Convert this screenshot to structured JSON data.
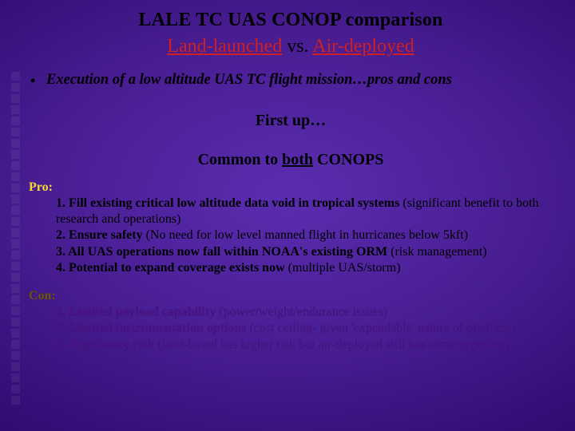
{
  "title": "LALE TC UAS CONOP comparison",
  "subtitle": {
    "land": "Land-launched",
    "vs": " vs. ",
    "air": "Air-deployed"
  },
  "bullet": {
    "dot": "•",
    "text": "Execution of a low altitude UAS TC flight mission…pros and cons"
  },
  "firstup": "First up…",
  "common": {
    "pre": "Common to ",
    "u": "both",
    "post": " CONOPS"
  },
  "pro": {
    "label": "Pro:",
    "items": [
      {
        "b": "1. Fill existing critical low altitude data void in tropical systems ",
        "p": "(significant benefit to both research and operations)"
      },
      {
        "b": "2. Ensure safety ",
        "p": "(No need for low level manned flight in hurricanes below 5kft)"
      },
      {
        "b": "3. All UAS operations now fall within NOAA's existing ORM ",
        "p": "(risk management)"
      },
      {
        "b": "4. Potential to expand coverage exists now ",
        "p": "(multiple UAS/storm)"
      }
    ]
  },
  "con": {
    "label": "Con:",
    "items": [
      {
        "b": "1. Limited payload capability ",
        "p": "(power/weight/endurance issues)"
      },
      {
        "b": "2. Limited instrumentation options ",
        "p": "(cost ceiling- given 'expendable' nature of platform)"
      },
      {
        "b": "3. Regulatory risk ",
        "p": "(land-based has higher risk but air-deployed still has some exposure)"
      }
    ]
  },
  "style": {
    "title_fontsize": 24,
    "subtitle_fontsize": 24,
    "body_fontsize": 16,
    "red": "#d02020",
    "yellow_label": "#f5d733",
    "dark_yellow_label": "#6b5a00",
    "con_text": "#4a1285",
    "bg_center": "#5a2db0",
    "bg_edge": "#140238"
  }
}
